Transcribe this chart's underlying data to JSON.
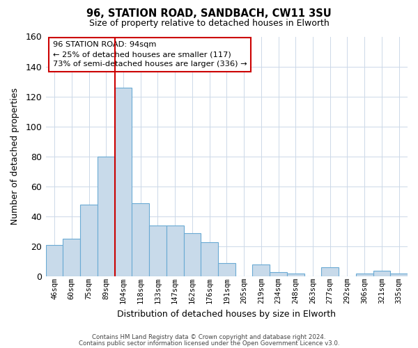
{
  "title1": "96, STATION ROAD, SANDBACH, CW11 3SU",
  "title2": "Size of property relative to detached houses in Elworth",
  "xlabel": "Distribution of detached houses by size in Elworth",
  "ylabel": "Number of detached properties",
  "categories": [
    "46sqm",
    "60sqm",
    "75sqm",
    "89sqm",
    "104sqm",
    "118sqm",
    "133sqm",
    "147sqm",
    "162sqm",
    "176sqm",
    "191sqm",
    "205sqm",
    "219sqm",
    "234sqm",
    "248sqm",
    "263sqm",
    "277sqm",
    "292sqm",
    "306sqm",
    "321sqm",
    "335sqm"
  ],
  "values": [
    21,
    25,
    48,
    80,
    126,
    49,
    34,
    34,
    29,
    23,
    9,
    0,
    8,
    3,
    2,
    0,
    6,
    0,
    2,
    4,
    2
  ],
  "bar_color": "#c8daea",
  "bar_edge_color": "#6aaad4",
  "vline_color": "#cc0000",
  "ylim": [
    0,
    160
  ],
  "yticks": [
    0,
    20,
    40,
    60,
    80,
    100,
    120,
    140,
    160
  ],
  "annotation_line1": "96 STATION ROAD: 94sqm",
  "annotation_line2": "← 25% of detached houses are smaller (117)",
  "annotation_line3": "73% of semi-detached houses are larger (336) →",
  "footer1": "Contains HM Land Registry data © Crown copyright and database right 2024.",
  "footer2": "Contains public sector information licensed under the Open Government Licence v3.0.",
  "background_color": "#ffffff",
  "grid_color": "#ccd8e8"
}
